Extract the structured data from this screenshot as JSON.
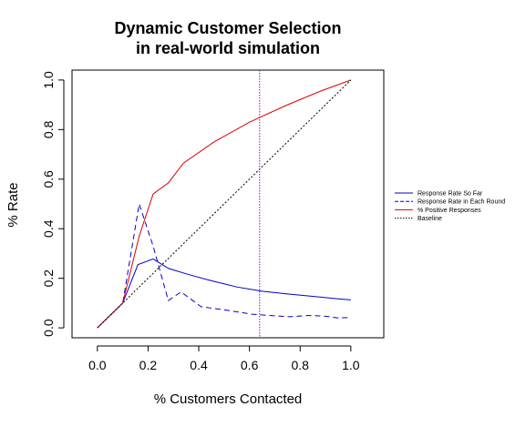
{
  "chart_data": {
    "type": "line",
    "title_lines": [
      "Dynamic Customer Selection",
      "in real-world simulation"
    ],
    "xlabel": "% Customers Contacted",
    "ylabel": "% Rate",
    "xlim": [
      -0.1,
      1.13
    ],
    "ylim": [
      -0.04,
      1.04
    ],
    "x_ticks": [
      0.0,
      0.2,
      0.4,
      0.6,
      0.8,
      1.0
    ],
    "x_tick_labels": [
      "0.0",
      "0.2",
      "0.4",
      "0.6",
      "0.8",
      "1.0"
    ],
    "y_ticks": [
      0.0,
      0.2,
      0.4,
      0.6,
      0.8,
      1.0
    ],
    "y_tick_labels": [
      "0.0",
      "0.2",
      "0.4",
      "0.6",
      "0.8",
      "1.0"
    ],
    "grid": false,
    "legend_position": "right",
    "vline": {
      "x": 0.64,
      "color": "#9900cc",
      "style": "dotted"
    },
    "series": [
      {
        "name": "Response Rate So Far",
        "color": "#0000cc",
        "style": "solid",
        "points": [
          [
            0.0,
            0.0
          ],
          [
            0.1,
            0.1
          ],
          [
            0.16,
            0.255
          ],
          [
            0.22,
            0.278
          ],
          [
            0.28,
            0.24
          ],
          [
            0.36,
            0.215
          ],
          [
            0.45,
            0.19
          ],
          [
            0.55,
            0.165
          ],
          [
            0.65,
            0.148
          ],
          [
            0.75,
            0.137
          ],
          [
            0.85,
            0.127
          ],
          [
            0.95,
            0.117
          ],
          [
            1.0,
            0.113
          ]
        ]
      },
      {
        "name": "Response Rate in Each Round",
        "color": "#0000cc",
        "style": "dashed",
        "points": [
          [
            0.0,
            0.0
          ],
          [
            0.1,
            0.1
          ],
          [
            0.165,
            0.5
          ],
          [
            0.22,
            0.33
          ],
          [
            0.28,
            0.11
          ],
          [
            0.33,
            0.145
          ],
          [
            0.41,
            0.085
          ],
          [
            0.5,
            0.073
          ],
          [
            0.61,
            0.055
          ],
          [
            0.68,
            0.05
          ],
          [
            0.76,
            0.045
          ],
          [
            0.84,
            0.05
          ],
          [
            0.9,
            0.047
          ],
          [
            0.95,
            0.04
          ],
          [
            1.0,
            0.042
          ]
        ]
      },
      {
        "name": "% Positive Responses",
        "color": "#dd0000",
        "style": "solid",
        "points": [
          [
            0.0,
            0.0
          ],
          [
            0.1,
            0.1
          ],
          [
            0.165,
            0.37
          ],
          [
            0.22,
            0.54
          ],
          [
            0.28,
            0.585
          ],
          [
            0.34,
            0.665
          ],
          [
            0.46,
            0.75
          ],
          [
            0.6,
            0.83
          ],
          [
            0.75,
            0.9
          ],
          [
            0.88,
            0.955
          ],
          [
            1.0,
            1.0
          ]
        ]
      },
      {
        "name": "Baseline",
        "color": "#000000",
        "style": "dotted",
        "points": [
          [
            0.0,
            0.0
          ],
          [
            1.0,
            1.0
          ]
        ]
      }
    ]
  }
}
